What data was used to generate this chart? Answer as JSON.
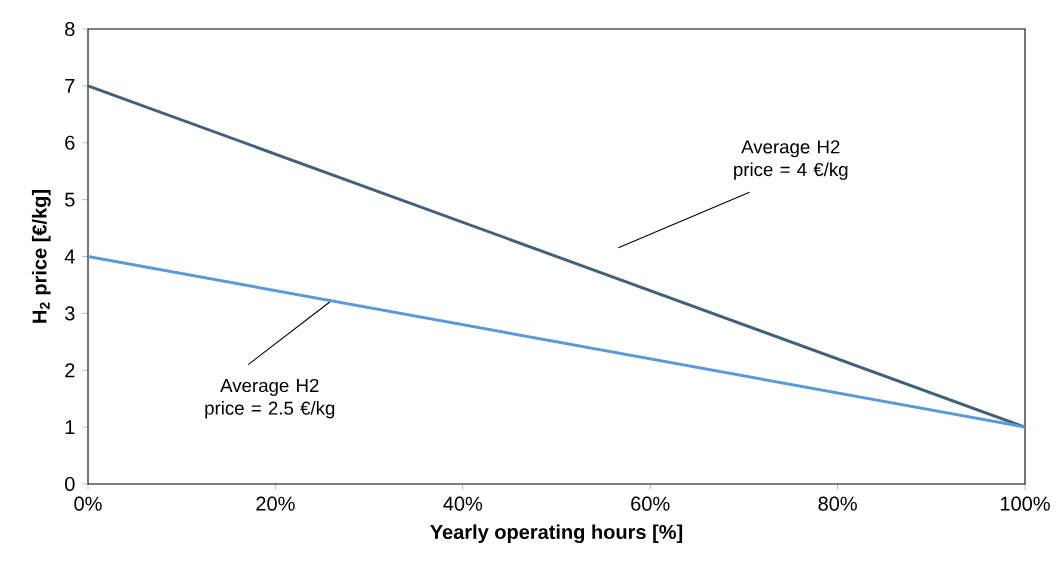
{
  "chart_data": {
    "type": "line",
    "xlabel": "Yearly operating hours [%]",
    "ylabel": "H$_{2}$ price [€/kg]",
    "x": [
      0,
      100
    ],
    "series": [
      {
        "color": "#44617b",
        "values": [
          7,
          1
        ]
      },
      {
        "color": "#5b9bd5",
        "values": [
          4,
          1
        ]
      }
    ],
    "xlim": [
      0,
      100
    ],
    "ylim": [
      0,
      8
    ],
    "xticks": [
      {
        "value": 0,
        "label": "0%"
      },
      {
        "value": 20,
        "label": "20%"
      },
      {
        "value": 40,
        "label": "40%"
      },
      {
        "value": 60,
        "label": "60%"
      },
      {
        "value": 80,
        "label": "80%"
      },
      {
        "value": 100,
        "label": "100%"
      }
    ],
    "yticks": [
      0,
      1,
      2,
      3,
      4,
      5,
      6,
      7,
      8
    ],
    "annotations": [
      "Average H2 price = 4 €/kg",
      {
        "text": "Average H2 price = 2.5 €/kg",
        "x": 25.8,
        "y": 3.2
      }
    ],
    "grid": false
  }
}
